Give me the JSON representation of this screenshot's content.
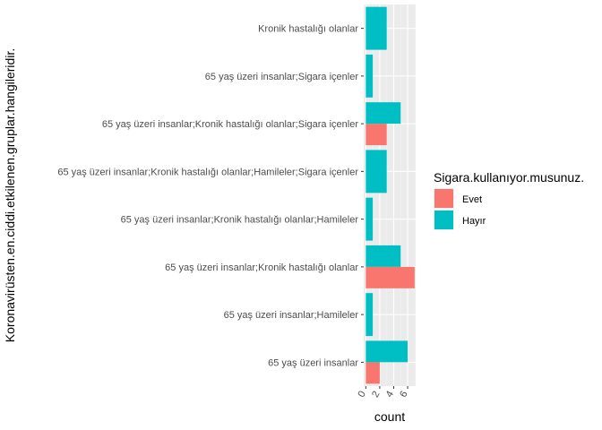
{
  "chart_data": {
    "type": "bar",
    "orientation": "horizontal",
    "bar_position": "dodge",
    "xlabel": "count",
    "ylabel": "Koronavirüsten.en.ciddi.etkilenen.gruplar.hangileridir.",
    "xlim": [
      0,
      7
    ],
    "x_ticks": [
      0,
      2,
      4,
      6
    ],
    "grid": true,
    "legend": {
      "title": "Sigara.kullanıyor.musunuz.",
      "position": "right"
    },
    "categories": [
      "65 yaş üzeri insanlar",
      "65 yaş üzeri insanlar;Hamileler",
      "65 yaş üzeri insanlar;Kronik hastalığı olanlar",
      "65 yaş üzeri insanlar;Kronik hastalığı olanlar;Hamileler",
      "65 yaş üzeri insanlar;Kronik hastalığı olanlar;Hamileler;Sigara içenler",
      "65 yaş üzeri insanlar;Kronik hastalığı olanlar;Sigara içenler",
      "65 yaş üzeri insanlar;Sigara içenler",
      "Kronik hastalığı olanlar"
    ],
    "series": [
      {
        "name": "Evet",
        "color": "#F8766D",
        "values": [
          2,
          0,
          7,
          0,
          0,
          3,
          0,
          0
        ]
      },
      {
        "name": "Hayır",
        "color": "#00BFC4",
        "values": [
          6,
          1,
          5,
          1,
          3,
          5,
          1,
          3
        ]
      }
    ]
  }
}
